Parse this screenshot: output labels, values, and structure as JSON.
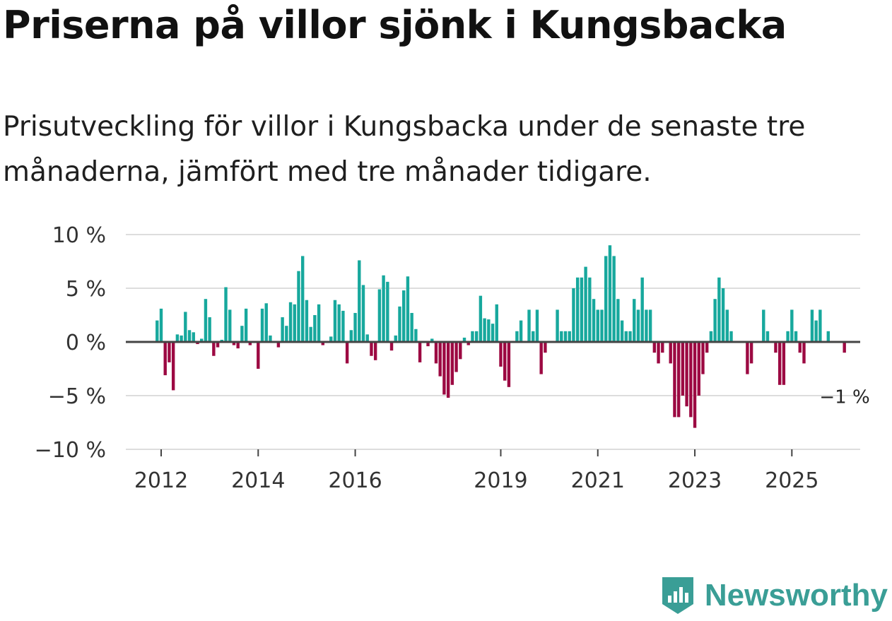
{
  "title": "Priserna på villor sjönk i Kungsbacka",
  "subtitle": "Prisutveckling för villor i Kungsbacka under de senaste tre månaderna, jämfört med tre månader tidigare.",
  "brand": {
    "name": "Newsworthy",
    "icon": "newsworthy-logo-icon",
    "color": "#3a9e96"
  },
  "chart_data": {
    "type": "bar",
    "title": "Priserna på villor sjönk i Kungsbacka",
    "xlabel": "",
    "ylabel": "",
    "ylim": [
      -10,
      10
    ],
    "yticks": [
      10,
      5,
      0,
      -5,
      -10
    ],
    "ytick_labels": [
      "10 %",
      "5 %",
      "0 %",
      "−5 %",
      "−10 %"
    ],
    "xticks": [
      2012,
      2014,
      2016,
      2019,
      2021,
      2023,
      2025
    ],
    "start": "2011-12",
    "positive_color": "#17a89d",
    "negative_color": "#9c0942",
    "end_label": "−1 %",
    "values": [
      2,
      3.1,
      -3.1,
      -1.9,
      -4.5,
      0.7,
      0.6,
      2.8,
      1.1,
      0.9,
      -0.2,
      0.3,
      4,
      2.3,
      -1.3,
      -0.5,
      0.2,
      5.1,
      3,
      -0.3,
      -0.6,
      1.5,
      3.1,
      -0.3,
      0,
      -2.5,
      3.1,
      3.6,
      0.6,
      0,
      -0.5,
      2.3,
      1.5,
      3.7,
      3.5,
      6.6,
      8,
      3.9,
      1.4,
      2.5,
      3.5,
      -0.3,
      0.1,
      0.5,
      3.9,
      3.5,
      2.9,
      -2,
      1.1,
      2.7,
      7.6,
      5.3,
      0.7,
      -1.3,
      -1.7,
      4.9,
      6.2,
      5.6,
      -0.8,
      0.6,
      3.3,
      4.8,
      6.1,
      2.7,
      1.2,
      -1.9,
      -0.1,
      -0.4,
      0.3,
      -2,
      -3.2,
      -4.9,
      -5.2,
      -4,
      -2.8,
      -1.6,
      0.4,
      -0.3,
      1,
      1,
      4.3,
      2.2,
      2.1,
      1.7,
      3.5,
      -2.3,
      -3.6,
      -4.2,
      0,
      1,
      2,
      0,
      3,
      1,
      3,
      -3,
      -1,
      0,
      0,
      3,
      1,
      1,
      1,
      5,
      6,
      6,
      7,
      6,
      4,
      3,
      3,
      8,
      9,
      8,
      4,
      2,
      1,
      1,
      4,
      3,
      6,
      3,
      3,
      -1,
      -2,
      -1,
      0,
      -2,
      -7,
      -7,
      -5,
      -6,
      -7,
      -8,
      -5,
      -3,
      -1,
      1,
      4,
      6,
      5,
      3,
      1,
      0,
      0,
      0,
      -3,
      -2,
      0,
      0,
      3,
      1,
      0,
      -1,
      -4,
      -4,
      1,
      3,
      1,
      -1,
      -2,
      0,
      3,
      2,
      3,
      0,
      1,
      0,
      0,
      0,
      -1
    ]
  }
}
